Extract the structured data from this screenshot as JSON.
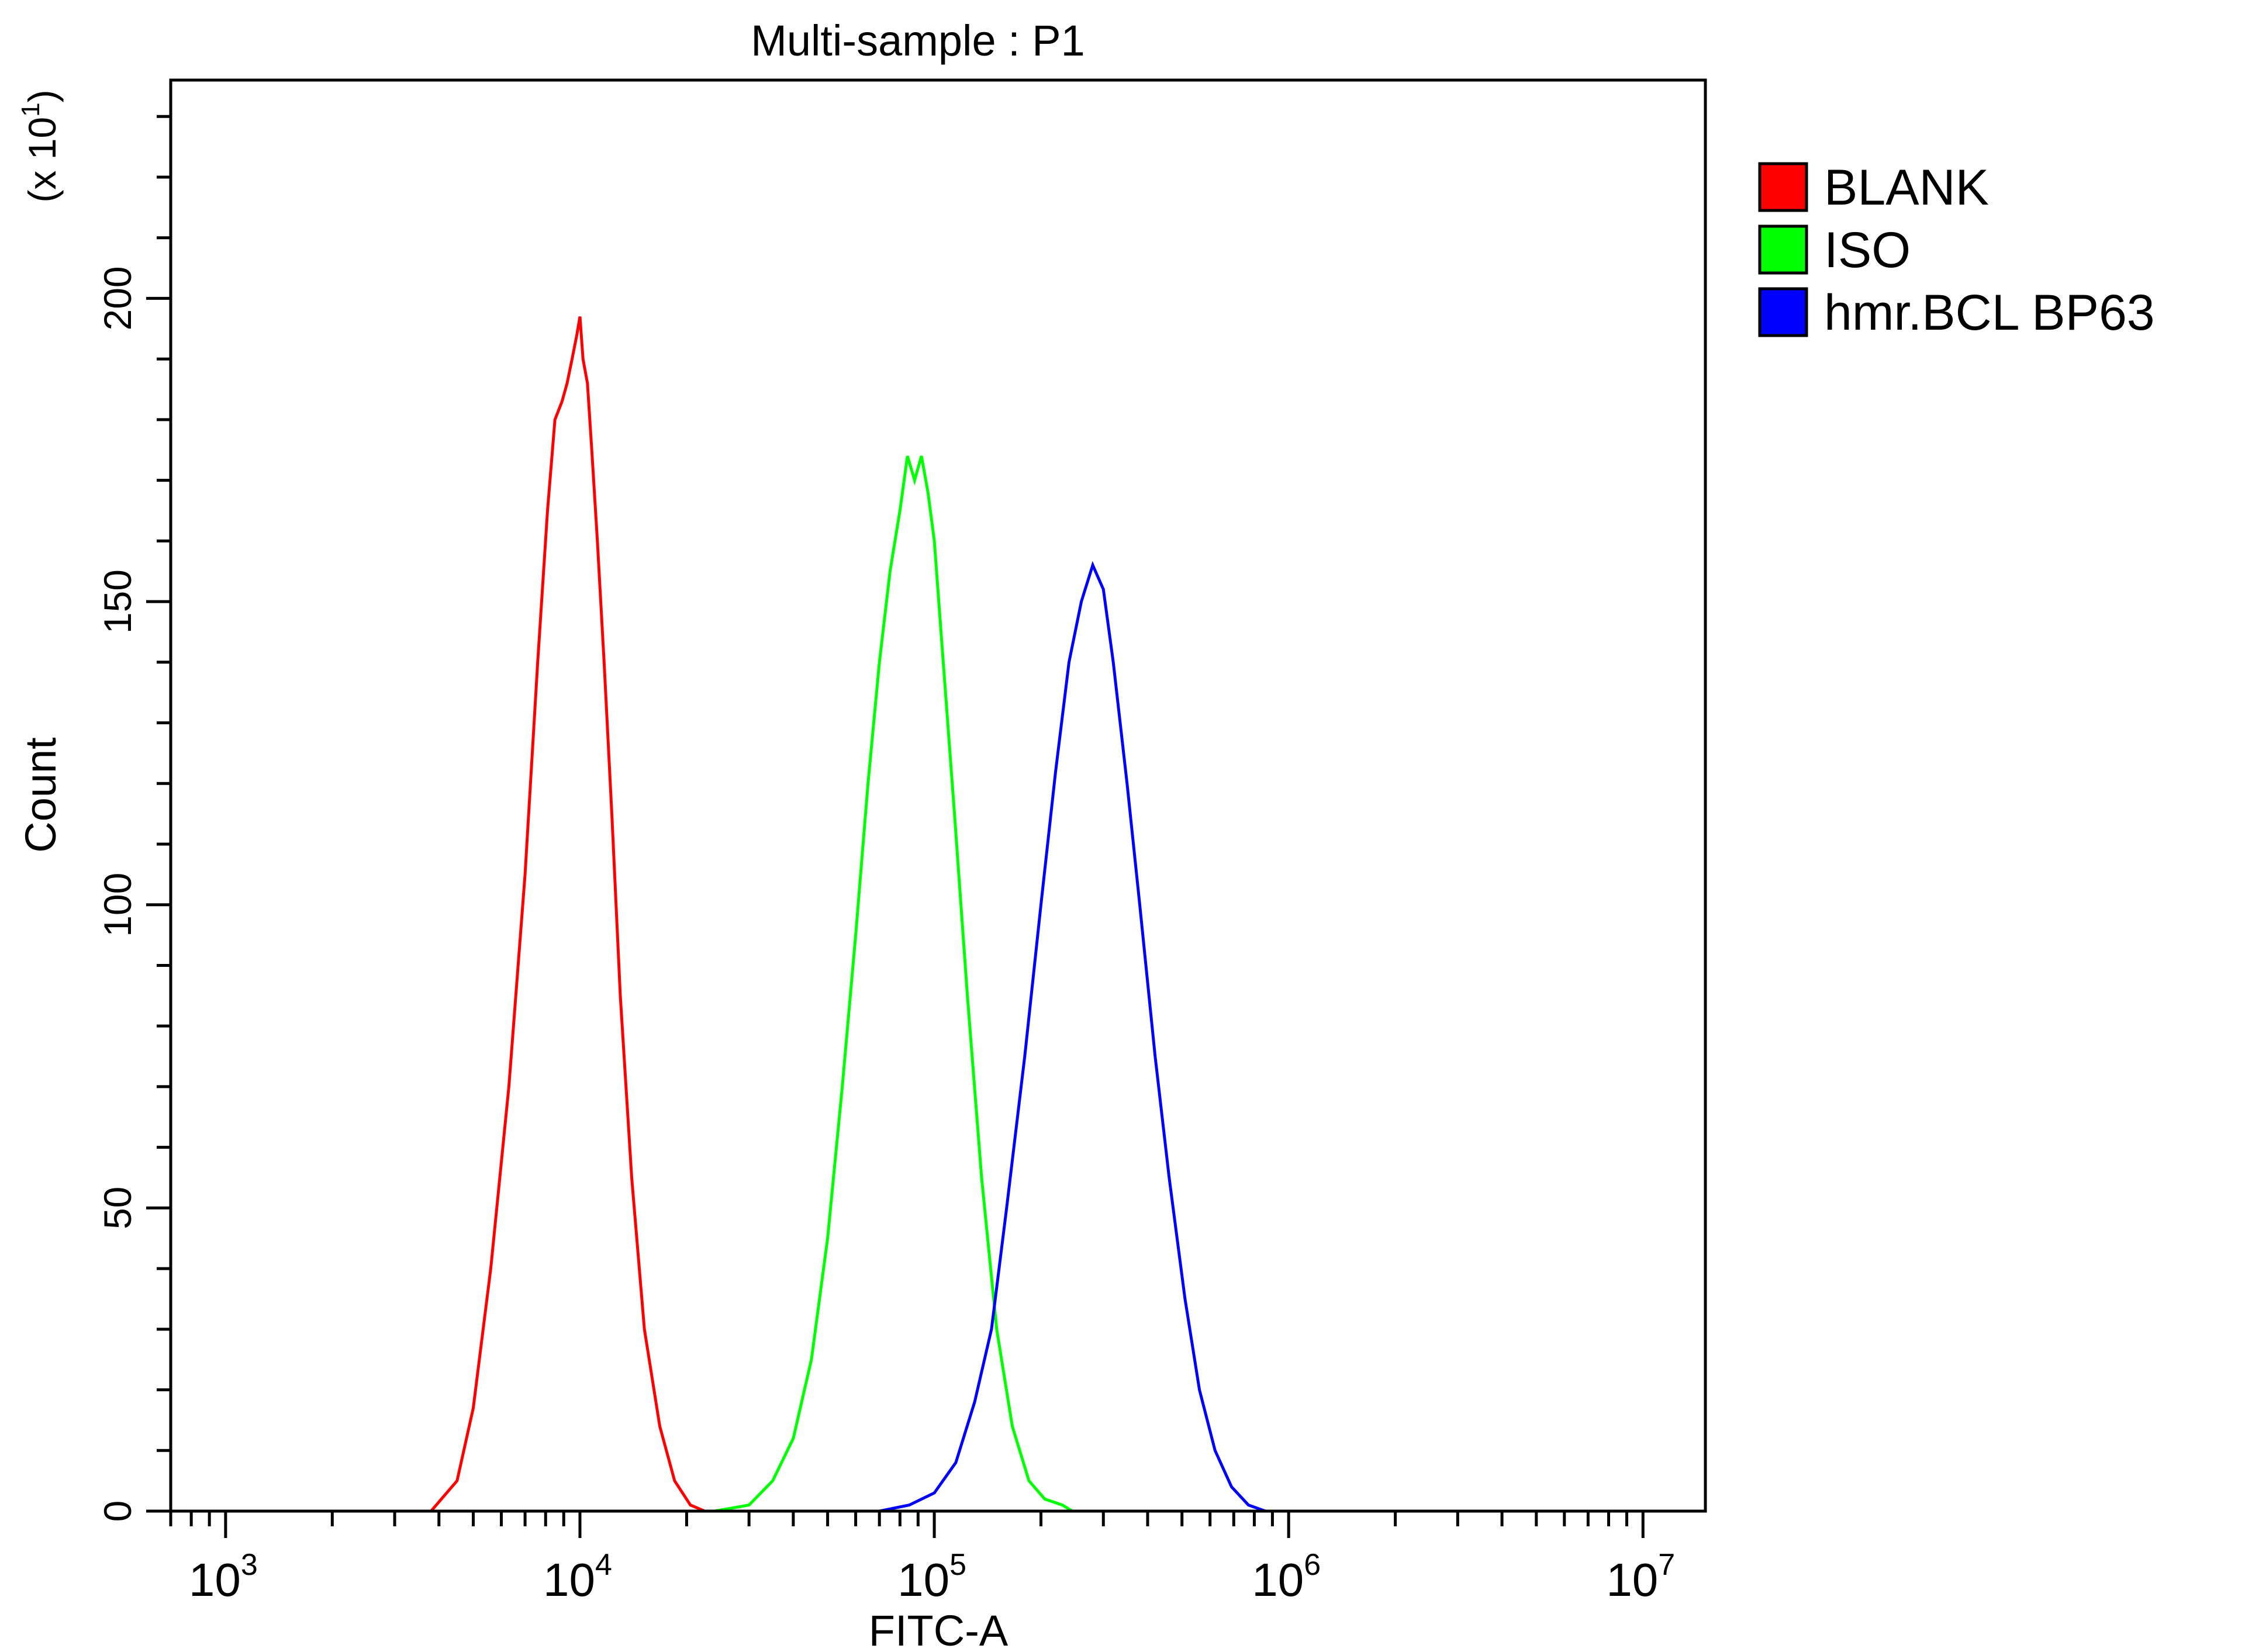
{
  "chart_data": {
    "type": "line",
    "title": "Multi-sample : P1",
    "xlabel": "FITC-A",
    "ylabel": "Count",
    "y_scale_note": "(x 10",
    "y_scale_note_exp": "1",
    "y_scale_note_close": ")",
    "x_scale": "log",
    "xlim": [
      700,
      15000000
    ],
    "ylim": [
      0,
      236
    ],
    "xticks": [
      {
        "value": 1000,
        "base": "10",
        "exp": "3"
      },
      {
        "value": 10000,
        "base": "10",
        "exp": "4"
      },
      {
        "value": 100000,
        "base": "10",
        "exp": "5"
      },
      {
        "value": 1000000,
        "base": "10",
        "exp": "6"
      },
      {
        "value": 10000000,
        "base": "10",
        "exp": "7"
      }
    ],
    "yticks": [
      "0",
      "50",
      "100",
      "150",
      "200"
    ],
    "legend_position": "right",
    "series": [
      {
        "name": "BLANK",
        "color": "#ff0000",
        "x": [
          3800,
          4500,
          5000,
          5600,
          6300,
          7000,
          7600,
          8100,
          8500,
          8900,
          9200,
          9500,
          9800,
          10000,
          10200,
          10500,
          10800,
          11200,
          11700,
          12300,
          13000,
          14000,
          15200,
          16800,
          18500,
          20500,
          22500
        ],
        "y": [
          0,
          5,
          17,
          40,
          70,
          105,
          140,
          165,
          180,
          183,
          186,
          190,
          194,
          197,
          190,
          186,
          175,
          160,
          140,
          115,
          85,
          55,
          30,
          14,
          5,
          1,
          0
        ]
      },
      {
        "name": "ISO",
        "color": "#00ff00",
        "x": [
          24000,
          30000,
          35000,
          40000,
          45000,
          50000,
          55000,
          60000,
          65000,
          70000,
          75000,
          80000,
          84000,
          88000,
          92000,
          96000,
          100000,
          106000,
          114000,
          124000,
          136000,
          150000,
          166000,
          185000,
          205000,
          230000,
          245000
        ],
        "y": [
          0,
          1,
          5,
          12,
          25,
          45,
          70,
          95,
          120,
          140,
          155,
          165,
          174,
          170,
          174,
          168,
          160,
          140,
          115,
          85,
          55,
          30,
          14,
          5,
          2,
          1,
          0
        ]
      },
      {
        "name": "hmr.BCL BP63",
        "color": "#0000ff",
        "x": [
          70000,
          85000,
          100000,
          115000,
          130000,
          145000,
          160000,
          180000,
          200000,
          220000,
          240000,
          260000,
          280000,
          300000,
          320000,
          350000,
          380000,
          420000,
          460000,
          510000,
          560000,
          620000,
          690000,
          770000,
          860000,
          930000
        ],
        "y": [
          0,
          1,
          3,
          8,
          18,
          30,
          50,
          75,
          100,
          122,
          140,
          150,
          156,
          152,
          140,
          120,
          100,
          75,
          55,
          35,
          20,
          10,
          4,
          1,
          0,
          0
        ]
      }
    ]
  }
}
